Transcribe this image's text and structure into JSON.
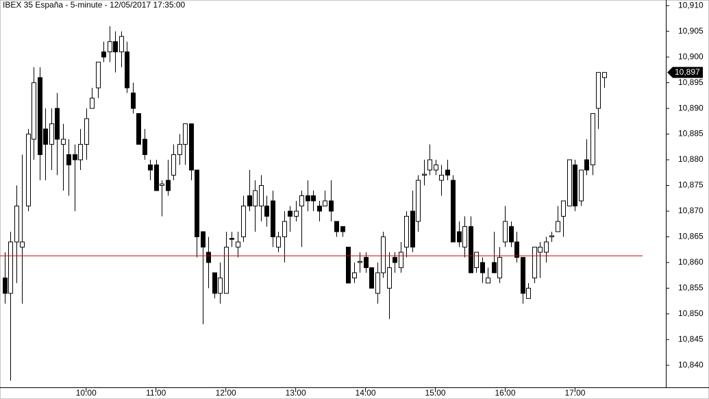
{
  "chart_data": {
    "type": "candlestick",
    "title": "IBEX 35 España - 5-minute - 12/05/2017 17:35:00",
    "x": [
      530,
      535,
      540,
      545,
      550,
      555,
      560,
      565,
      570,
      575,
      580,
      585,
      590,
      595,
      600,
      605,
      610,
      615,
      620,
      625,
      630,
      635,
      640,
      645,
      650,
      655,
      660,
      665,
      670,
      675,
      680,
      685,
      690,
      695,
      700,
      705,
      710,
      715,
      720,
      725,
      730,
      735,
      740,
      745,
      750,
      755,
      760,
      765,
      770,
      775,
      780,
      785,
      790,
      795,
      800,
      805,
      810,
      815,
      820,
      825,
      830,
      835,
      840,
      845,
      850,
      855,
      860,
      865,
      870,
      875,
      880,
      885,
      890,
      895,
      900,
      905,
      910,
      915,
      920,
      925,
      930,
      935,
      940,
      945,
      950,
      955,
      960,
      965,
      970,
      975,
      980,
      985,
      990,
      995,
      1000,
      1005,
      1010,
      1015,
      1020,
      1025,
      1030,
      1035,
      1040,
      1045
    ],
    "open": [
      10857,
      10854,
      10864,
      10863,
      10871,
      10884,
      10896,
      10886,
      10883,
      10890,
      10883,
      10881,
      10881,
      10880,
      10883,
      10890,
      10894,
      10901,
      10901,
      10903,
      10901,
      10901,
      10893,
      10889,
      10884,
      10879,
      10879,
      10875,
      10876,
      10877,
      10881,
      10883,
      10887,
      10878,
      10866,
      10862,
      10858,
      10854,
      10854,
      10864.7,
      10863,
      10865,
      10873,
      10871,
      10871,
      10871,
      10872,
      10863,
      10865,
      10870,
      10869,
      10871,
      10873,
      10873,
      10871,
      10871,
      10872,
      10868,
      10867,
      10863,
      10857,
      10860,
      10861,
      10859,
      10854,
      10858,
      10855,
      10861,
      10859,
      10863,
      10870,
      10868,
      10877,
      10878,
      10878,
      10876,
      10878,
      10876,
      10866,
      10863,
      10867,
      10859,
      10860,
      10856,
      10860,
      10857,
      10864,
      10867,
      10864,
      10861,
      10853,
      10857,
      10862,
      10862,
      10865,
      10866,
      10869,
      10871,
      10879,
      10872,
      10880,
      10879,
      10890,
      10896
    ],
    "high": [
      10862,
      10866,
      10875,
      10881,
      10886,
      10898,
      10898,
      10890,
      10890,
      10893,
      10887,
      10884,
      10883,
      10886,
      10890,
      10894,
      10899,
      10903,
      10906,
      10905,
      10905,
      10903,
      10895,
      10889,
      10886,
      10880,
      10880,
      10876,
      10880,
      10883,
      10885,
      10887,
      10887,
      10878,
      10866,
      10865,
      10858,
      10860,
      10866,
      10866,
      10866,
      10873,
      10878,
      10876,
      10877,
      10873,
      10874,
      10866,
      10870,
      10871,
      10872,
      10874,
      10876,
      10874,
      10872,
      10874,
      10876,
      10868,
      10867,
      10863,
      10860,
      10862,
      10862,
      10859,
      10860,
      10866,
      10862,
      10862,
      10864,
      10870,
      10874,
      10877,
      10880,
      10883,
      10880,
      10879,
      10880,
      10877,
      10868,
      10869,
      10869,
      10862,
      10861,
      10859,
      10866,
      10863,
      10871,
      10868,
      10866,
      10861,
      10856,
      10863,
      10864,
      10865,
      10866,
      10871,
      10872,
      10880,
      10880,
      10878,
      10884,
      10889,
      10897,
      10897
    ],
    "low": [
      10852,
      10837,
      10856,
      10852,
      10870,
      10880,
      10876,
      10876,
      10878,
      10877,
      10874,
      10873,
      10870,
      10878,
      10880,
      10890,
      10892,
      10899,
      10899,
      10897,
      10898,
      10893,
      10889,
      10883,
      10880,
      10876,
      10874,
      10869,
      10873,
      10876,
      10879,
      10879,
      10876,
      10861,
      10848,
      10855,
      10853,
      10852,
      10854,
      10863,
      10861,
      10864,
      10870,
      10866,
      10868,
      10867,
      10863,
      10862,
      10860,
      10866,
      10868,
      10863,
      10870,
      10870,
      10868,
      10871,
      10868,
      10865,
      10865,
      10856,
      10856,
      10858,
      10858,
      10855,
      10852,
      10857,
      10849,
      10858,
      10858,
      10861,
      10862,
      10866,
      10875,
      10877,
      10877,
      10873,
      10876,
      10864,
      10863,
      10861,
      10858,
      10858,
      10856,
      10856,
      10858,
      10856,
      10863,
      10863,
      10860,
      10852,
      10853,
      10856,
      10857,
      10860,
      10864,
      10866,
      10865,
      10871,
      10870,
      10871,
      10877,
      10877,
      10886,
      10894
    ],
    "close": [
      10854,
      10864,
      10871,
      10864,
      10885,
      10895,
      10881,
      10883,
      10887,
      10884,
      10884,
      10879,
      10880,
      10883,
      10888,
      10892,
      10899,
      10900,
      10903,
      10901,
      10904,
      10894,
      10890,
      10883,
      10881,
      10878,
      10874,
      10875.3,
      10874,
      10881,
      10883,
      10887,
      10878,
      10865,
      10863,
      10860,
      10854,
      10857,
      10863,
      10864.5,
      10864,
      10871,
      10871,
      10874,
      10875,
      10869,
      10865,
      10865,
      10868,
      10869,
      10870,
      10873,
      10872,
      10872,
      10870,
      10872,
      10870,
      10866,
      10866,
      10856,
      10858,
      10860.2,
      10859,
      10855,
      10858,
      10865,
      10859,
      10860,
      10862,
      10869,
      10863,
      10876,
      10877.2,
      10880,
      10879,
      10877,
      10877,
      10864,
      10864,
      10867,
      10858,
      10862,
      10858,
      10857,
      10858,
      10861,
      10868,
      10864,
      10861,
      10854,
      10855,
      10863,
      10863,
      10864,
      10865.2,
      10868,
      10872,
      10880,
      10871,
      10878,
      10878,
      10889,
      10897,
      10897
    ],
    "up_color": "#ffffff",
    "down_color": "#000000",
    "xlim": [
      526,
      1098
    ],
    "xticks": [
      {
        "value": 600,
        "label": "10:00"
      },
      {
        "value": 660,
        "label": "11:00"
      },
      {
        "value": 720,
        "label": "12:00"
      },
      {
        "value": 780,
        "label": "13:00"
      },
      {
        "value": 840,
        "label": "14:00"
      },
      {
        "value": 900,
        "label": "15:00"
      },
      {
        "value": 960,
        "label": "16:00"
      },
      {
        "value": 1020,
        "label": "17:00"
      }
    ],
    "ylim": [
      10835.7,
      10911.1
    ],
    "yticks": [
      {
        "value": 10840,
        "label": "10,840"
      },
      {
        "value": 10845,
        "label": "10,845"
      },
      {
        "value": 10850,
        "label": "10,850"
      },
      {
        "value": 10855,
        "label": "10,855"
      },
      {
        "value": 10860,
        "label": "10,860"
      },
      {
        "value": 10865,
        "label": "10,865"
      },
      {
        "value": 10870,
        "label": "10,870"
      },
      {
        "value": 10875,
        "label": "10,875"
      },
      {
        "value": 10880,
        "label": "10,880"
      },
      {
        "value": 10885,
        "label": "10,885"
      },
      {
        "value": 10890,
        "label": "10,890"
      },
      {
        "value": 10895,
        "label": "10,895"
      },
      {
        "value": 10900,
        "label": "10,900"
      },
      {
        "value": 10905,
        "label": "10,905"
      },
      {
        "value": 10910,
        "label": "10,910"
      }
    ],
    "reference_line": {
      "value": 10861.3,
      "color": "#cc0000"
    },
    "last_price": {
      "value": 10897,
      "label": "10,897"
    }
  }
}
